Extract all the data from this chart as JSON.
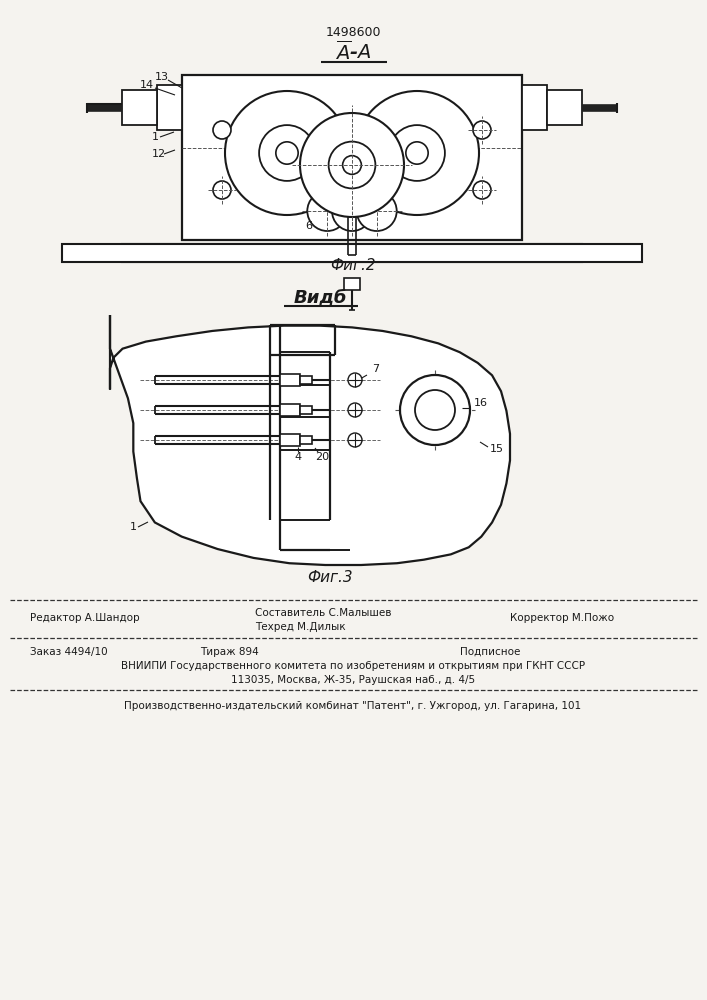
{
  "patent_number": "1498600",
  "fig2_caption": "Фиг.2",
  "fig3_title": "Видб",
  "fig3_caption": "Фиг.3",
  "footer_line1_left": "Редактор А.Шандор",
  "footer_sestavitel": "Составитель С.Малышев",
  "footer_tekhred": "Техред М.Дилык",
  "footer_korrektor": "Корректор М.Пожо",
  "footer_zakaz": "Заказ 4494/10",
  "footer_tirazh": "Тираж 894",
  "footer_podpisnoe": "Подписное",
  "footer_vniipи": "ВНИИПИ Государственного комитета по изобретениям и открытиям при ГКНТ СССР",
  "footer_addr": "113035, Москва, Ж-35, Раушская наб., д. 4/5",
  "footer_patent": "Производственно-издательский комбинат \"Патент\", г. Ужгород, ул. Гагарина, 101",
  "bg_color": "#f5f3ef",
  "line_color": "#1a1a1a"
}
